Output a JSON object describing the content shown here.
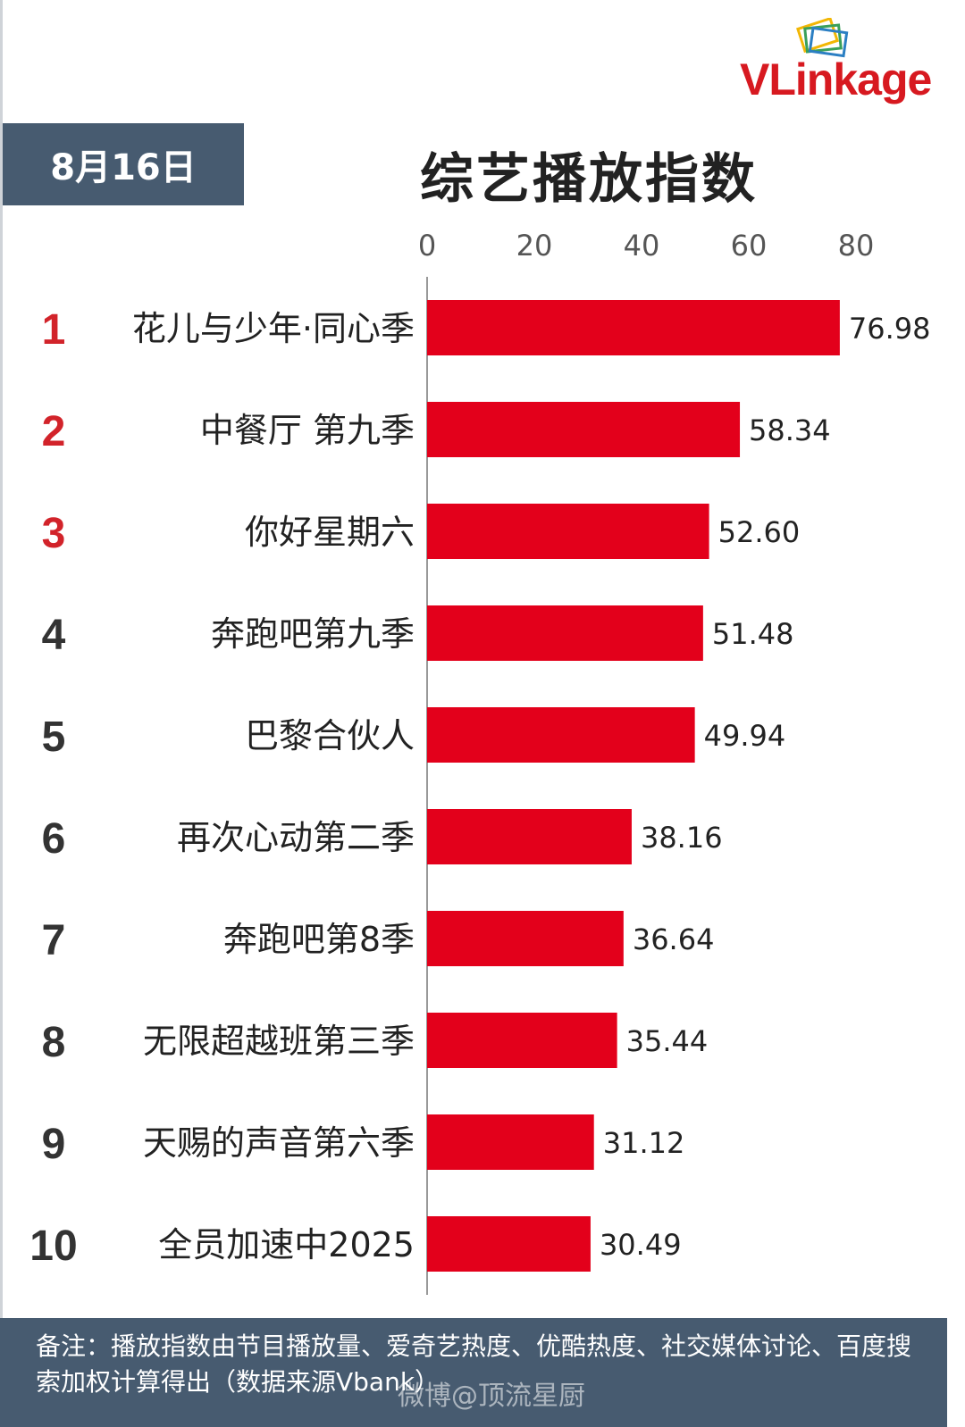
{
  "brand": {
    "logo_text_v": "VL",
    "logo_text_rest": "inkage"
  },
  "header": {
    "date": "8月16日",
    "title": "综艺播放指数"
  },
  "colors": {
    "bar": "#e3001b",
    "rank_top": "#d2232a",
    "rank_other": "#333333",
    "header_bg": "#475b70"
  },
  "chart_data": {
    "type": "bar",
    "orientation": "horizontal",
    "title": "综艺播放指数",
    "xlim": [
      0,
      80
    ],
    "x_ticks": [
      "0",
      "20",
      "40",
      "60",
      "80"
    ],
    "ranks": [
      "1",
      "2",
      "3",
      "4",
      "5",
      "6",
      "7",
      "8",
      "9",
      "10"
    ],
    "categories": [
      "花儿与少年·同心季",
      "中餐厅 第九季",
      "你好星期六",
      "奔跑吧第九季",
      "巴黎合伙人",
      "再次心动第二季",
      "奔跑吧第8季",
      "无限超越班第三季",
      "天赐的声音第六季",
      "全员加速中2025"
    ],
    "values": [
      76.98,
      58.34,
      52.6,
      51.48,
      49.94,
      38.16,
      36.64,
      35.44,
      31.12,
      30.49
    ],
    "value_labels": [
      "76.98",
      "58.34",
      "52.60",
      "51.48",
      "49.94",
      "38.16",
      "36.64",
      "35.44",
      "31.12",
      "30.49"
    ],
    "grid": false,
    "legend": "none"
  },
  "footer": {
    "note": "备注：播放指数由节目播放量、爱奇艺热度、优酷热度、社交媒体讨论、百度搜索加权计算得出（数据来源Vbank）",
    "watermark": "微博@顶流星厨"
  }
}
